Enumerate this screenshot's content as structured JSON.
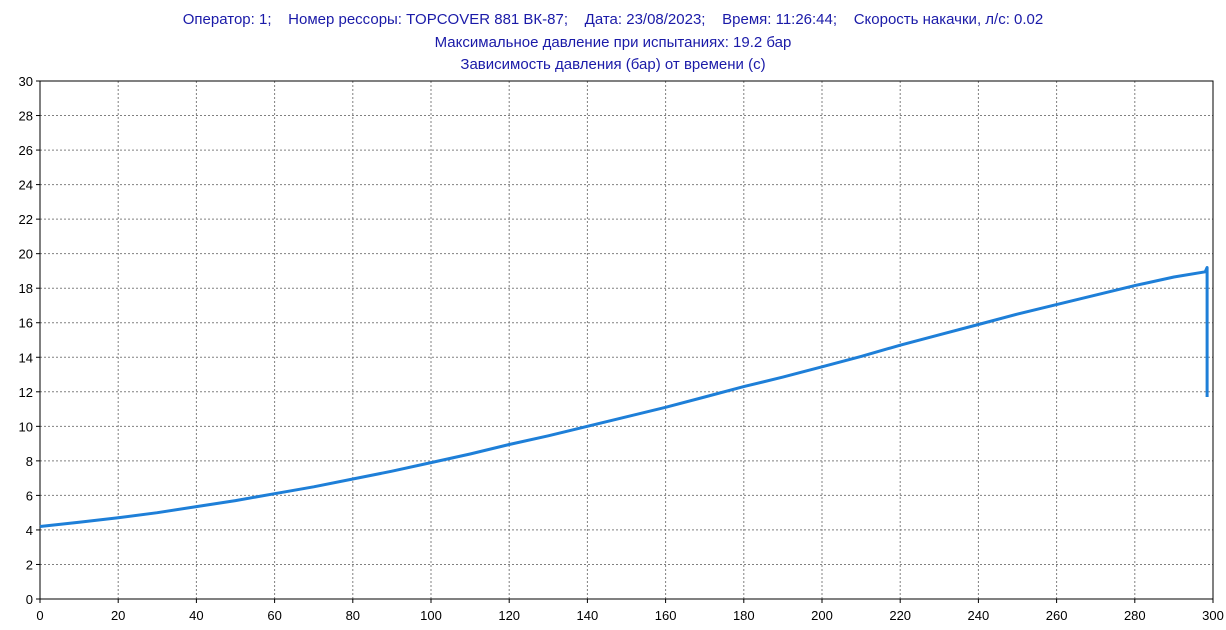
{
  "header": {
    "line1": "Оператор: 1;    Номер рессоры: TOPCOVER 881 ВК-87;    Дата: 23/08/2023;    Время: 11:26:44;    Скорость накачки, л/с: 0.02",
    "line2": "Максимальное давление при испытаниях: 19.2 бар",
    "line3": "Зависимость давления (бар) от времени (с)"
  },
  "colors": {
    "line": "#1e7fd8",
    "grid": "#808080",
    "text": "#1a1aa8"
  },
  "chart_data": {
    "type": "line",
    "title": "Зависимость давления (бар) от времени (с)",
    "xlim": [
      0,
      300
    ],
    "ylim": [
      0,
      30
    ],
    "xticks": [
      0,
      20,
      40,
      60,
      80,
      100,
      120,
      140,
      160,
      180,
      200,
      220,
      240,
      260,
      280,
      300
    ],
    "yticks": [
      0,
      2,
      4,
      6,
      8,
      10,
      12,
      14,
      16,
      18,
      20,
      22,
      24,
      26,
      28,
      30
    ],
    "grid": true,
    "series": [
      {
        "x": [
          0,
          10,
          20,
          30,
          40,
          50,
          60,
          70,
          80,
          90,
          100,
          110,
          120,
          130,
          140,
          150,
          160,
          170,
          180,
          190,
          200,
          210,
          220,
          230,
          240,
          250,
          260,
          270,
          280,
          290,
          298,
          298.5,
          298.5
        ],
        "y": [
          4.2,
          4.45,
          4.7,
          5.0,
          5.35,
          5.7,
          6.1,
          6.5,
          6.95,
          7.4,
          7.9,
          8.4,
          8.95,
          9.45,
          10.0,
          10.55,
          11.1,
          11.7,
          12.3,
          12.85,
          13.45,
          14.05,
          14.7,
          15.3,
          15.9,
          16.5,
          17.05,
          17.6,
          18.15,
          18.65,
          18.95,
          19.2,
          11.7
        ]
      }
    ]
  }
}
